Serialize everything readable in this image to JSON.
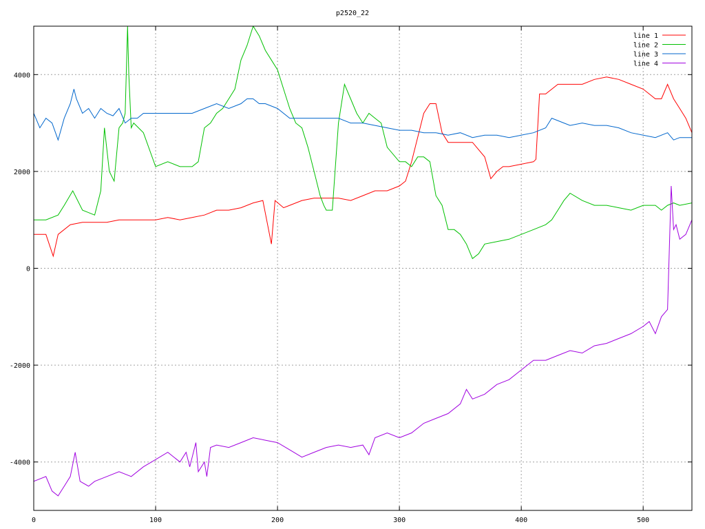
{
  "chart_data": {
    "type": "line",
    "title": "p2520_22",
    "xlabel": "",
    "ylabel": "",
    "xlim": [
      0,
      540
    ],
    "ylim": [
      -5000,
      5000
    ],
    "xticks": [
      0,
      100,
      200,
      300,
      400,
      500
    ],
    "yticks": [
      -4000,
      -2000,
      0,
      2000,
      4000
    ],
    "xtick_labels": [
      "0",
      "100",
      "200",
      "300",
      "400",
      "500"
    ],
    "ytick_labels": [
      "-4000",
      "-2000",
      "0",
      "2000",
      "4000"
    ],
    "grid": true,
    "legend_position": "top-right",
    "series": [
      {
        "name": "line 1",
        "color": "#ff0000",
        "x": [
          0,
          10,
          16,
          20,
          30,
          40,
          50,
          60,
          70,
          80,
          90,
          100,
          110,
          120,
          130,
          140,
          150,
          160,
          170,
          180,
          188,
          195,
          198,
          205,
          210,
          220,
          230,
          240,
          250,
          260,
          270,
          280,
          290,
          300,
          305,
          310,
          320,
          325,
          330,
          335,
          340,
          350,
          360,
          370,
          375,
          380,
          385,
          390,
          400,
          410,
          412,
          415,
          420,
          430,
          440,
          450,
          460,
          470,
          480,
          490,
          500,
          505,
          510,
          515,
          520,
          525,
          530,
          535,
          540
        ],
        "y": [
          700,
          700,
          250,
          700,
          900,
          950,
          950,
          950,
          1000,
          1000,
          1000,
          1000,
          1050,
          1000,
          1050,
          1100,
          1200,
          1200,
          1250,
          1350,
          1400,
          500,
          1400,
          1250,
          1300,
          1400,
          1450,
          1450,
          1450,
          1400,
          1500,
          1600,
          1600,
          1700,
          1800,
          2200,
          3200,
          3400,
          3400,
          2800,
          2600,
          2600,
          2600,
          2300,
          1850,
          2000,
          2100,
          2100,
          2150,
          2200,
          2250,
          3600,
          3600,
          3800,
          3800,
          3800,
          3900,
          3950,
          3900,
          3800,
          3700,
          3600,
          3500,
          3500,
          3800,
          3500,
          3300,
          3100,
          2800
        ]
      },
      {
        "name": "line 2",
        "color": "#00c000",
        "x": [
          0,
          10,
          20,
          25,
          32,
          40,
          50,
          55,
          58,
          62,
          66,
          70,
          73,
          75,
          77,
          78,
          80,
          82,
          90,
          100,
          110,
          120,
          130,
          135,
          140,
          145,
          150,
          155,
          160,
          165,
          170,
          175,
          180,
          185,
          190,
          195,
          200,
          205,
          210,
          215,
          220,
          225,
          230,
          235,
          238,
          240,
          245,
          250,
          255,
          260,
          265,
          270,
          275,
          280,
          285,
          290,
          300,
          305,
          310,
          315,
          320,
          325,
          330,
          335,
          340,
          345,
          350,
          355,
          360,
          365,
          370,
          380,
          390,
          400,
          410,
          420,
          425,
          430,
          435,
          440,
          450,
          460,
          470,
          480,
          490,
          500,
          510,
          515,
          520,
          525,
          530,
          540
        ],
        "y": [
          1000,
          1000,
          1100,
          1300,
          1600,
          1200,
          1100,
          1600,
          2900,
          2000,
          1800,
          2900,
          3000,
          3200,
          5000,
          4000,
          2900,
          3000,
          2800,
          2100,
          2200,
          2100,
          2100,
          2200,
          2900,
          3000,
          3200,
          3300,
          3500,
          3700,
          4300,
          4600,
          5000,
          4800,
          4500,
          4300,
          4100,
          3700,
          3300,
          3000,
          2900,
          2500,
          2000,
          1500,
          1300,
          1200,
          1200,
          3000,
          3800,
          3500,
          3200,
          3000,
          3200,
          3100,
          3000,
          2500,
          2200,
          2200,
          2100,
          2300,
          2300,
          2200,
          1500,
          1300,
          800,
          800,
          700,
          500,
          200,
          300,
          500,
          550,
          600,
          700,
          800,
          900,
          1000,
          1200,
          1400,
          1550,
          1400,
          1300,
          1300,
          1250,
          1200,
          1300,
          1300,
          1200,
          1300,
          1350,
          1300,
          1350
        ]
      },
      {
        "name": "line 3",
        "color": "#0066cc",
        "x": [
          0,
          5,
          10,
          15,
          20,
          25,
          30,
          33,
          35,
          40,
          45,
          50,
          55,
          60,
          65,
          70,
          75,
          80,
          85,
          90,
          100,
          110,
          120,
          130,
          140,
          150,
          160,
          170,
          175,
          180,
          185,
          190,
          200,
          210,
          220,
          230,
          240,
          250,
          260,
          270,
          280,
          290,
          300,
          310,
          320,
          330,
          340,
          350,
          360,
          370,
          380,
          390,
          400,
          410,
          420,
          425,
          430,
          435,
          440,
          450,
          460,
          470,
          480,
          490,
          500,
          510,
          520,
          525,
          530,
          540
        ],
        "y": [
          3200,
          2900,
          3100,
          3000,
          2650,
          3100,
          3400,
          3700,
          3500,
          3200,
          3300,
          3100,
          3300,
          3200,
          3150,
          3300,
          3000,
          3100,
          3100,
          3200,
          3200,
          3200,
          3200,
          3200,
          3300,
          3400,
          3300,
          3400,
          3500,
          3500,
          3400,
          3400,
          3300,
          3100,
          3100,
          3100,
          3100,
          3100,
          3000,
          3000,
          2950,
          2900,
          2850,
          2850,
          2800,
          2800,
          2750,
          2800,
          2700,
          2750,
          2750,
          2700,
          2750,
          2800,
          2900,
          3100,
          3050,
          3000,
          2950,
          3000,
          2950,
          2950,
          2900,
          2800,
          2750,
          2700,
          2800,
          2650,
          2700,
          2700
        ]
      },
      {
        "name": "line 4",
        "color": "#a000e0",
        "x": [
          0,
          10,
          15,
          20,
          25,
          30,
          34,
          38,
          45,
          50,
          60,
          70,
          80,
          90,
          100,
          110,
          120,
          125,
          128,
          133,
          135,
          140,
          142,
          145,
          150,
          160,
          170,
          180,
          190,
          200,
          210,
          220,
          230,
          240,
          250,
          260,
          270,
          275,
          280,
          290,
          300,
          310,
          320,
          330,
          340,
          350,
          355,
          360,
          370,
          380,
          390,
          400,
          410,
          420,
          430,
          440,
          450,
          460,
          470,
          480,
          490,
          500,
          505,
          510,
          515,
          520,
          523,
          525,
          527,
          530,
          535,
          540
        ],
        "y": [
          -4400,
          -4300,
          -4600,
          -4700,
          -4500,
          -4300,
          -3800,
          -4400,
          -4500,
          -4400,
          -4300,
          -4200,
          -4300,
          -4100,
          -3950,
          -3800,
          -4000,
          -3800,
          -4100,
          -3600,
          -4200,
          -4000,
          -4300,
          -3700,
          -3650,
          -3700,
          -3600,
          -3500,
          -3550,
          -3600,
          -3750,
          -3900,
          -3800,
          -3700,
          -3650,
          -3700,
          -3650,
          -3850,
          -3500,
          -3400,
          -3500,
          -3400,
          -3200,
          -3100,
          -3000,
          -2800,
          -2500,
          -2700,
          -2600,
          -2400,
          -2300,
          -2100,
          -1900,
          -1900,
          -1800,
          -1700,
          -1750,
          -1600,
          -1550,
          -1450,
          -1350,
          -1200,
          -1100,
          -1350,
          -1000,
          -850,
          1700,
          800,
          900,
          600,
          700,
          1000
        ]
      }
    ]
  }
}
